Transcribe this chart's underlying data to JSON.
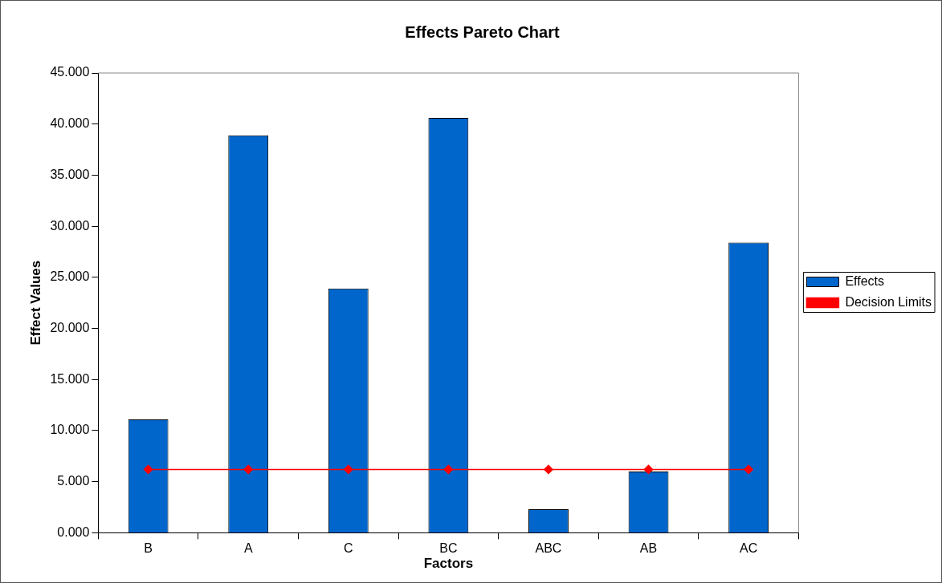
{
  "chart_data": {
    "type": "bar",
    "title": "Effects Pareto Chart",
    "xlabel": "Factors",
    "ylabel": "Effect Values",
    "categories": [
      "B",
      "A",
      "C",
      "BC",
      "ABC",
      "AB",
      "AC"
    ],
    "series": [
      {
        "name": "Effects",
        "color": "#0066cc",
        "values": [
          11.1,
          38.9,
          23.9,
          40.6,
          2.3,
          6.0,
          28.4
        ]
      },
      {
        "name": "Decision Limits",
        "type": "line",
        "color": "#ff0000",
        "marker": "diamond",
        "values": [
          6.2,
          6.2,
          6.2,
          6.2,
          6.2,
          6.2,
          6.2
        ]
      }
    ],
    "ylim": [
      0,
      45
    ],
    "yticks": [
      {
        "value": 0,
        "label": "0.000"
      },
      {
        "value": 5,
        "label": "5.000"
      },
      {
        "value": 10,
        "label": "10.000"
      },
      {
        "value": 15,
        "label": "15.000"
      },
      {
        "value": 20,
        "label": "20.000"
      },
      {
        "value": 25,
        "label": "25.000"
      },
      {
        "value": 30,
        "label": "30.000"
      },
      {
        "value": 35,
        "label": "35.000"
      },
      {
        "value": 40,
        "label": "40.000"
      },
      {
        "value": 45,
        "label": "45.000"
      }
    ],
    "grid": false,
    "legend": "right"
  }
}
